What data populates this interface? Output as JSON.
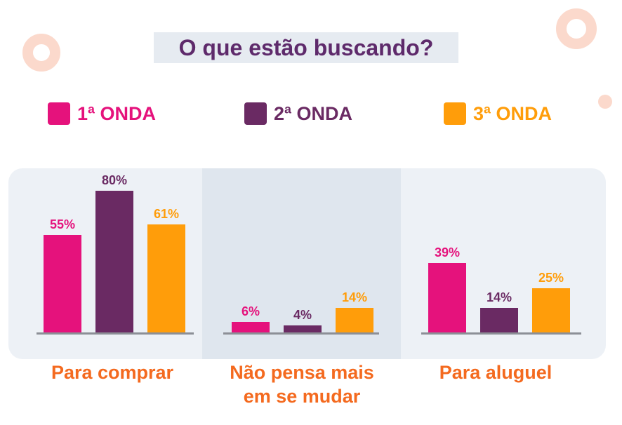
{
  "chart_data": {
    "type": "bar",
    "title": "O que estão buscando?",
    "categories": [
      "Para comprar",
      "Não pensa mais em se mudar",
      "Para aluguel"
    ],
    "category_lines": [
      [
        "Para comprar"
      ],
      [
        "Não pensa mais",
        "em se mudar"
      ],
      [
        "Para aluguel"
      ]
    ],
    "series": [
      {
        "name": "1ª ONDA",
        "color": "#e5127c",
        "values": [
          55,
          6,
          39
        ],
        "labels": [
          "55%",
          "6%",
          "39%"
        ]
      },
      {
        "name": "2ª ONDA",
        "color": "#6a2a63",
        "values": [
          80,
          4,
          14
        ],
        "labels": [
          "80%",
          "4%",
          "14%"
        ]
      },
      {
        "name": "3ª ONDA",
        "color": "#ff9d0a",
        "values": [
          61,
          14,
          25
        ],
        "labels": [
          "61%",
          "14%",
          "25%"
        ]
      }
    ],
    "value_unit": "%",
    "ylim": [
      0,
      100
    ],
    "legend_position": "top",
    "grid": false
  }
}
